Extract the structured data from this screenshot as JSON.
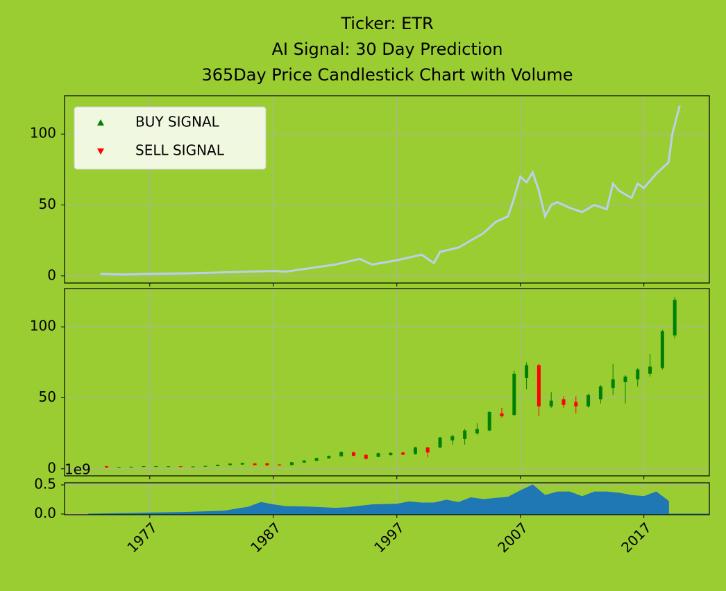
{
  "title": [
    "Ticker: ETR",
    "AI Signal: 30 Day Prediction",
    "365Day Price Candlestick Chart with Volume"
  ],
  "chart_data": [
    {
      "type": "line",
      "color": "#b7d3e9",
      "grid": true,
      "legend_corner": "upper left",
      "legend": [
        {
          "name": "BUY SIGNAL",
          "color": "green",
          "marker": "triangle-up"
        },
        {
          "name": "SELL SIGNAL",
          "color": "red",
          "marker": "triangle-down"
        }
      ],
      "x": [
        1973,
        1975,
        1977,
        1980,
        1983,
        1985,
        1987,
        1988,
        1990,
        1992,
        1994,
        1995,
        1997,
        1998,
        1999,
        2000,
        2000.5,
        2002,
        2003,
        2004,
        2005,
        2006,
        2006.5,
        2007,
        2007.5,
        2008,
        2008.5,
        2009,
        2009.5,
        2010,
        2011,
        2012,
        2013,
        2014,
        2014.5,
        2015,
        2016,
        2016.5,
        2017,
        2018,
        2019,
        2019.3,
        2019.9
      ],
      "values": [
        1.5,
        1.0,
        1.5,
        1.8,
        2.5,
        3,
        3.5,
        3,
        5.5,
        8,
        12,
        8,
        11,
        13,
        15,
        9,
        17,
        20,
        25,
        30,
        38,
        42,
        55,
        70,
        66,
        73,
        60,
        42,
        50,
        52,
        48,
        45,
        50,
        47,
        65,
        60,
        55,
        65,
        62,
        72,
        80,
        100,
        120
      ],
      "xlim": [
        1970.1,
        2022.3
      ],
      "xticks": [
        1977,
        1987,
        1997,
        2007,
        2017
      ],
      "ylim": [
        -5,
        127
      ],
      "yticks": [
        0,
        50,
        100
      ]
    },
    {
      "type": "candlestick",
      "up_color": "green",
      "down_color": "red",
      "grid": true,
      "x": [
        1973.5,
        1974.5,
        1975.5,
        1976.5,
        1977.5,
        1978.5,
        1979.5,
        1980.5,
        1981.5,
        1982.5,
        1983.5,
        1984.5,
        1985.5,
        1986.5,
        1987.5,
        1988.5,
        1989.5,
        1990.5,
        1991.5,
        1992.5,
        1993.5,
        1994.5,
        1995.5,
        1996.5,
        1997.5,
        1998.5,
        1999.5,
        2000.5,
        2001.5,
        2002.5,
        2003.5,
        2004.5,
        2005.5,
        2006.5,
        2007.5,
        2008.5,
        2009.5,
        2010.5,
        2011.5,
        2012.5,
        2013.5,
        2014.5,
        2015.5,
        2016.5,
        2017.5,
        2018.5,
        2019.5
      ],
      "open": [
        1.8,
        0.9,
        1.1,
        1.3,
        1.6,
        1.6,
        1.7,
        1.2,
        1.5,
        1.9,
        2.6,
        3.0,
        3.7,
        3.8,
        3.0,
        2.6,
        4.4,
        5.6,
        7.4,
        8.8,
        11.5,
        9.8,
        8.4,
        9.6,
        11.4,
        10.4,
        15.0,
        15.0,
        20,
        21,
        25,
        27,
        39,
        38,
        64,
        73,
        44,
        49,
        47,
        44,
        49,
        57,
        61,
        63,
        67,
        71,
        94
      ],
      "high": [
        2.0,
        1.3,
        1.5,
        1.9,
        1.9,
        1.8,
        1.8,
        1.7,
        2.1,
        3.0,
        3.8,
        4.2,
        3.9,
        4.0,
        3.2,
        4.8,
        6.0,
        7.8,
        9.3,
        12.2,
        12.0,
        10.2,
        11.4,
        11.6,
        12.0,
        15.5,
        15.4,
        22.5,
        24,
        28,
        32,
        40.5,
        43,
        69,
        75,
        74,
        54,
        51,
        51,
        53,
        59,
        74,
        66,
        71,
        81,
        98,
        121
      ],
      "low": [
        0.8,
        0.8,
        1.0,
        1.2,
        1.5,
        1.5,
        1.3,
        1.1,
        1.4,
        1.8,
        2.4,
        2.8,
        2.4,
        2.2,
        2.2,
        2.4,
        4.2,
        5.4,
        7.2,
        8.5,
        8.8,
        6.6,
        8.2,
        9.4,
        9.6,
        10.0,
        8.0,
        14.5,
        17,
        17,
        24,
        26.5,
        36,
        37,
        56,
        37,
        43,
        43,
        39,
        43,
        46,
        52,
        46,
        58,
        65,
        70,
        92
      ],
      "close": [
        0.9,
        1.2,
        1.4,
        1.8,
        1.8,
        1.7,
        1.4,
        1.6,
        2.0,
        2.8,
        3.6,
        4.0,
        2.6,
        2.4,
        2.4,
        4.6,
        5.8,
        7.6,
        9.0,
        11.8,
        9.2,
        7.0,
        11.0,
        11.2,
        10.0,
        15.0,
        11.5,
        22.0,
        23,
        27,
        28,
        40,
        37,
        67,
        73,
        44,
        48,
        45,
        44,
        52,
        58,
        63,
        65,
        70,
        72,
        97,
        119
      ],
      "xlim": [
        1970.1,
        2022.3
      ],
      "xticks": [
        1977,
        1987,
        1997,
        2007,
        2017
      ],
      "ylim": [
        -5,
        127
      ],
      "yticks": [
        0,
        50,
        100
      ]
    },
    {
      "type": "area",
      "color": "#1f77b4",
      "grid": true,
      "offset_label": "1e9",
      "x": [
        1972,
        1975,
        1977,
        1980,
        1983,
        1985,
        1986,
        1987,
        1988,
        1990,
        1992,
        1993,
        1995,
        1997,
        1998,
        1999,
        2000,
        2001,
        2002,
        2003,
        2004,
        2006,
        2007,
        2008,
        2009,
        2010,
        2011,
        2012,
        2013,
        2014,
        2015,
        2016,
        2017,
        2018,
        2019,
        2019.01,
        2022.3
      ],
      "values": [
        0.0,
        0.01,
        0.02,
        0.03,
        0.05,
        0.12,
        0.2,
        0.16,
        0.13,
        0.12,
        0.1,
        0.11,
        0.16,
        0.17,
        0.21,
        0.19,
        0.19,
        0.24,
        0.2,
        0.28,
        0.25,
        0.29,
        0.4,
        0.5,
        0.32,
        0.38,
        0.38,
        0.3,
        0.38,
        0.38,
        0.36,
        0.32,
        0.3,
        0.38,
        0.22,
        0.0,
        0.0
      ],
      "xlim": [
        1970.1,
        2022.3
      ],
      "xticks": [
        1977,
        1987,
        1997,
        2007,
        2017
      ],
      "ylim": [
        -0.012,
        0.536
      ],
      "yticks": [
        {
          "value": 0,
          "label": "0.0"
        },
        {
          "value": 0.5,
          "label": "0.5"
        }
      ]
    }
  ]
}
